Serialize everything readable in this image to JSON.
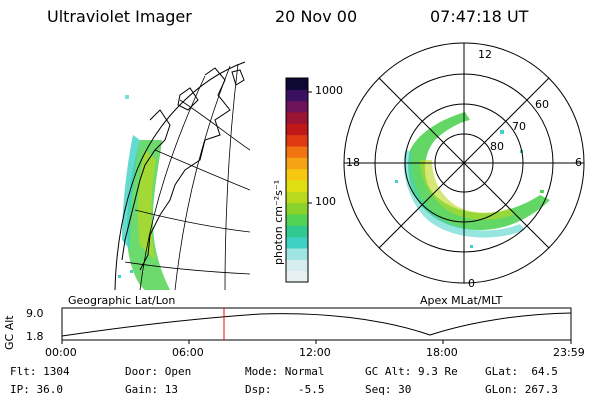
{
  "header": {
    "title": "Ultraviolet Imager",
    "date": "20 Nov 00",
    "time": "07:47:18 UT"
  },
  "colorbar": {
    "unit_label": "photon cm⁻²s⁻¹",
    "ticks": [
      "1000",
      "100"
    ],
    "colors": [
      "#e9f0f0",
      "#d6eded",
      "#9fe5e2",
      "#3fd1c4",
      "#31c98e",
      "#52d354",
      "#8ad22c",
      "#b9d91c",
      "#e0df14",
      "#f7c812",
      "#f5a312",
      "#f07412",
      "#e03a12",
      "#c01818",
      "#9a1532",
      "#6d1357",
      "#3a1061",
      "#0c0a33"
    ]
  },
  "polar_plot": {
    "labels": [
      "12",
      "60",
      "70",
      "80",
      "18",
      "6",
      "0"
    ]
  },
  "timeline": {
    "left_title": "Geographic Lat/Lon",
    "right_title": "Apex MLat/MLT",
    "y_axis_label": "GC Alt",
    "y_ticks": [
      "9.0",
      "1.8"
    ],
    "x_ticks": [
      "00:00",
      "06:00",
      "12:00",
      "18:00",
      "23:59"
    ],
    "marker_color": "#ff0000"
  },
  "status": {
    "row1": [
      "Flt: 1304",
      "Door: Open",
      "Mode: Normal",
      "GC Alt: 9.3 Re",
      "GLat:  64.5"
    ],
    "row2": [
      "IP: 36.0",
      "Gain: 13",
      "Dsp:    -5.5",
      "Seq: 30",
      "GLon: 267.3"
    ]
  },
  "colors": {
    "aurora_green": "#52d354",
    "aurora_cyan": "#3fd1c4",
    "aurora_yellow": "#b9d91c"
  }
}
